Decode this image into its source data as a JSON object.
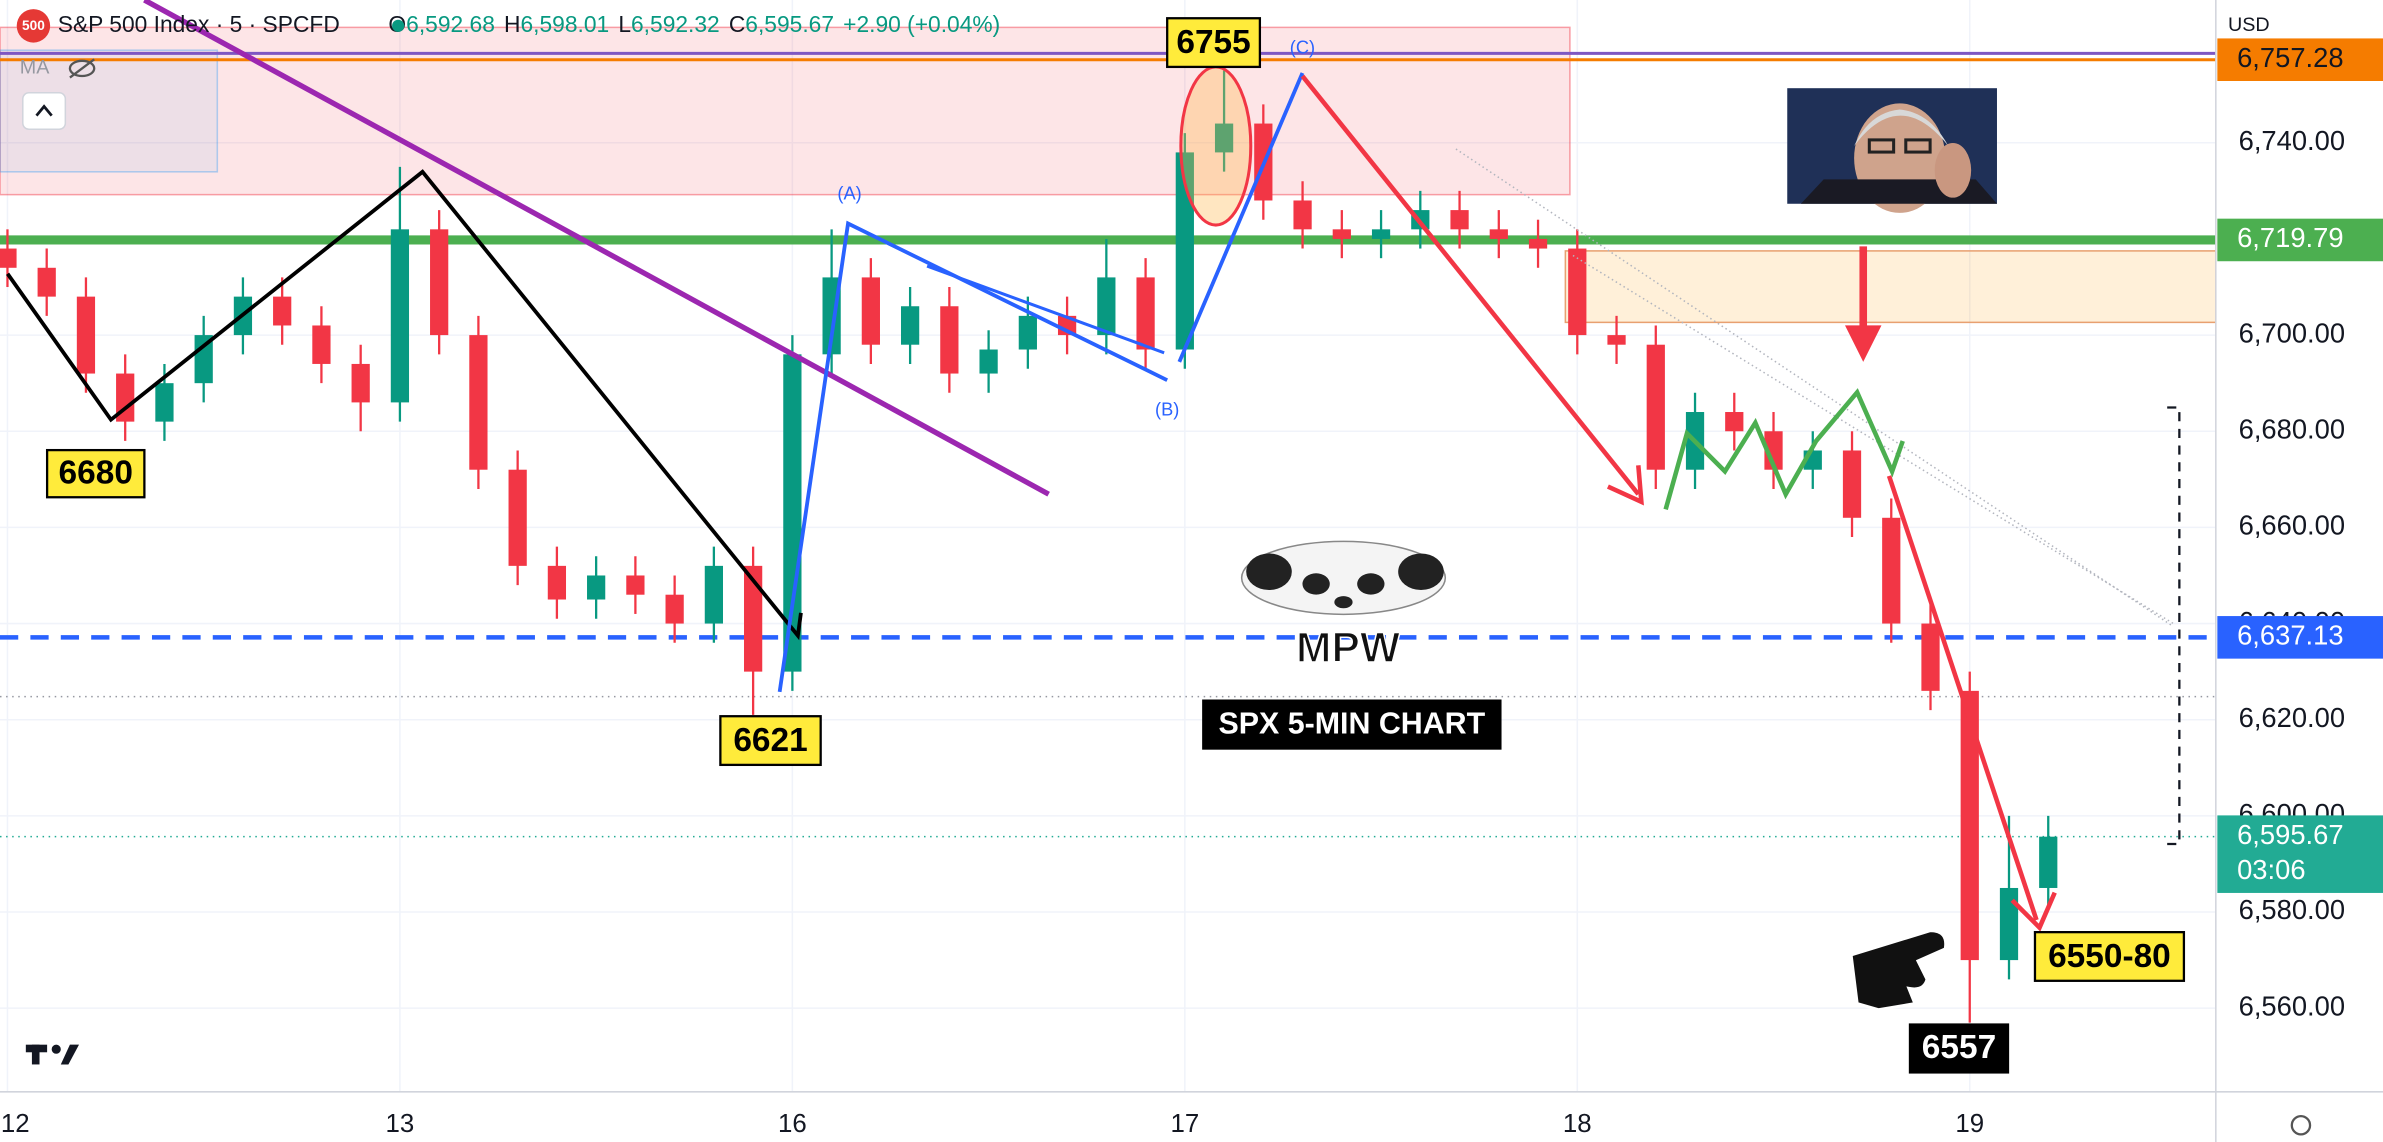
{
  "header": {
    "badge": "500",
    "symbol": "S&P 500 Index · 5 · SPCFD",
    "ohlc": [
      {
        "key": "O",
        "value": "6,592.68"
      },
      {
        "key": "H",
        "value": "6,598.01"
      },
      {
        "key": "L",
        "value": "6,592.32"
      },
      {
        "key": "C",
        "value": "6,595.67"
      }
    ],
    "change": "+2.90 (+0.04%)",
    "indicator": "MA"
  },
  "currency": "USD",
  "chart_data": {
    "type": "candlestick",
    "x": [
      0,
      0.1,
      0.2,
      0.3,
      0.4,
      0.5,
      0.6,
      0.7,
      0.8,
      0.9,
      1,
      1.1,
      1.2,
      1.3,
      1.4,
      1.5,
      1.6,
      1.7,
      1.8,
      1.9,
      2,
      2.1,
      2.2,
      2.3,
      2.4,
      2.5,
      2.6,
      2.7,
      2.8,
      2.9,
      3,
      3.1,
      3.2,
      3.3,
      3.4,
      3.5,
      3.6,
      3.7,
      3.8,
      3.9,
      4,
      4.1,
      4.2,
      4.3,
      4.4,
      4.5,
      4.6,
      4.7,
      4.8,
      4.9,
      5,
      5.1,
      5.2
    ],
    "open": [
      6718,
      6714,
      6708,
      6692,
      6682,
      6690,
      6700,
      6708,
      6702,
      6694,
      6686,
      6722,
      6700,
      6672,
      6652,
      6645,
      6650,
      6646,
      6640,
      6652,
      6630,
      6696,
      6712,
      6698,
      6706,
      6692,
      6697,
      6704,
      6700,
      6712,
      6697,
      6738,
      6744,
      6728,
      6722,
      6720,
      6722,
      6726,
      6722,
      6720,
      6718,
      6700,
      6698,
      6672,
      6684,
      6680,
      6672,
      6676,
      6662,
      6640,
      6626,
      6570,
      6585
    ],
    "high": [
      6722,
      6718,
      6712,
      6696,
      6694,
      6704,
      6712,
      6712,
      6706,
      6698,
      6735,
      6726,
      6704,
      6676,
      6656,
      6654,
      6654,
      6650,
      6656,
      6656,
      6700,
      6722,
      6716,
      6710,
      6710,
      6701,
      6708,
      6708,
      6720,
      6716,
      6742,
      6755,
      6748,
      6732,
      6726,
      6726,
      6730,
      6730,
      6726,
      6724,
      6722,
      6704,
      6702,
      6688,
      6688,
      6684,
      6680,
      6680,
      6666,
      6644,
      6630,
      6600,
      6600
    ],
    "low": [
      6710,
      6704,
      6688,
      6678,
      6678,
      6686,
      6696,
      6698,
      6690,
      6680,
      6682,
      6696,
      6668,
      6648,
      6641,
      6641,
      6642,
      6636,
      6636,
      6621,
      6626,
      6692,
      6694,
      6694,
      6688,
      6688,
      6693,
      6696,
      6696,
      6693,
      6693,
      6734,
      6724,
      6718,
      6716,
      6716,
      6718,
      6718,
      6716,
      6714,
      6696,
      6694,
      6668,
      6668,
      6676,
      6668,
      6668,
      6658,
      6636,
      6622,
      6557,
      6566,
      6581
    ],
    "close": [
      6714,
      6708,
      6692,
      6682,
      6690,
      6700,
      6708,
      6702,
      6694,
      6686,
      6722,
      6700,
      6672,
      6652,
      6645,
      6650,
      6646,
      6640,
      6652,
      6630,
      6696,
      6712,
      6698,
      6706,
      6692,
      6697,
      6704,
      6700,
      6712,
      6697,
      6738,
      6744,
      6728,
      6722,
      6720,
      6722,
      6726,
      6722,
      6720,
      6718,
      6700,
      6698,
      6672,
      6684,
      6680,
      6672,
      6676,
      6662,
      6640,
      6626,
      6570,
      6585,
      6595.67
    ],
    "up_color": "#089981",
    "down_color": "#f23645",
    "xlim": [
      -0.019,
      5.627
    ],
    "xticks": [
      {
        "value": 0,
        "label": "12"
      },
      {
        "value": 1,
        "label": "13"
      },
      {
        "value": 2,
        "label": "16"
      },
      {
        "value": 3,
        "label": "17"
      },
      {
        "value": 4,
        "label": "18"
      },
      {
        "value": 5,
        "label": "19"
      }
    ],
    "ylim": [
      6542.6,
      6769.7
    ],
    "yticks": [
      {
        "value": 6560,
        "label": "6,560.00"
      },
      {
        "value": 6580,
        "label": "6,580.00"
      },
      {
        "value": 6600,
        "label": "6,600.00"
      },
      {
        "value": 6620,
        "label": "6,620.00"
      },
      {
        "value": 6640,
        "label": "6,640.00"
      },
      {
        "value": 6660,
        "label": "6,660.00"
      },
      {
        "value": 6680,
        "label": "6,680.00"
      },
      {
        "value": 6700,
        "label": "6,700.00"
      },
      {
        "value": 6720,
        "label": "6,720.00"
      },
      {
        "value": 6740,
        "label": "6,740.00"
      }
    ],
    "grid": true,
    "levels": [
      {
        "value": 6758.6,
        "color": "#7e57c2",
        "style": "solid",
        "width": 2
      },
      {
        "value": 6757.28,
        "label": "6,757.28",
        "color": "#f57c00",
        "style": "solid",
        "width": 2,
        "text_color": "#131722"
      },
      {
        "value": 6719.79,
        "label": "6,719.79",
        "color": "#4caf50",
        "style": "solid",
        "width": 6,
        "text_color": "#ffffff"
      },
      {
        "value": 6637.13,
        "label": "6,637.13",
        "color": "#2962ff",
        "style": "dashed",
        "width": 3,
        "text_color": "#ffffff"
      },
      {
        "value": 6624.8,
        "color": "#9598a1",
        "style": "dotted",
        "width": 1
      },
      {
        "value": 6595.67,
        "label": "6,595.67",
        "sublabel": "03:06",
        "color": "#22ab94",
        "style": "dotted",
        "width": 1,
        "text_color": "#ffffff"
      }
    ],
    "annotations": [
      "6755",
      "6680",
      "6621",
      "6557",
      "6550-80",
      "SPX 5-MIN CHART",
      "MPW",
      "(A)",
      "(B)",
      "(C)"
    ]
  }
}
